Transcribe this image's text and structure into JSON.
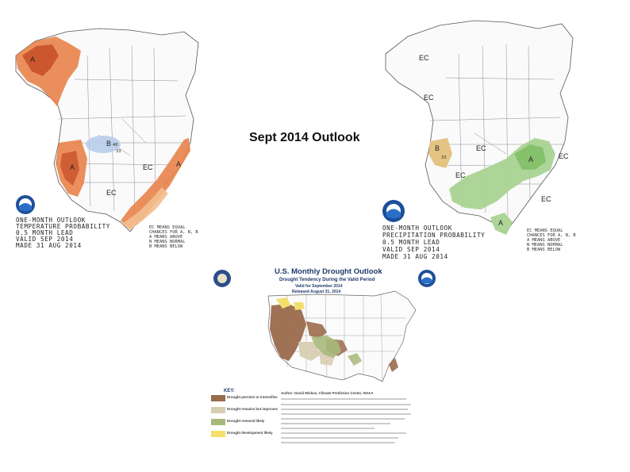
{
  "slide": {
    "title": "Sept 2014 Outlook"
  },
  "temperature_map": {
    "footer_lines": [
      "ONE-MONTH OUTLOOK",
      "TEMPERATURE PROBABILITY",
      "0.5 MONTH LEAD",
      "VALID SEP 2014",
      "MADE 31 AUG 2014"
    ],
    "legend_lines": [
      "EC MEANS EQUAL",
      "CHANCES FOR A, N, B",
      "A MEANS ABOVE",
      "N MEANS NORMAL",
      "B MEANS BELOW"
    ],
    "region_labels": {
      "a1": "A",
      "b1": "B",
      "b1_pct": "40",
      "b1_pct2": "33",
      "ec1": "EC",
      "ec2": "EC",
      "a2": "A",
      "a3": "A"
    },
    "colors": {
      "above": "#e8834a",
      "above_light": "#f3bf8f",
      "above_dark": "#c9512a",
      "below": "#b8cdea"
    }
  },
  "precip_map": {
    "footer_lines": [
      "ONE-MONTH OUTLOOK",
      "PRECIPITATION PROBABILITY",
      "0.5 MONTH LEAD",
      "VALID SEP 2014",
      "MADE 31 AUG 2014"
    ],
    "legend_lines": [
      "EC MEANS EQUAL",
      "CHANCES FOR A, N, B",
      "A MEANS ABOVE",
      "N MEANS NORMAL",
      "B MEANS BELOW"
    ],
    "region_labels": {
      "ec1": "EC",
      "ec2": "EC",
      "ec3": "EC",
      "ec4": "EC",
      "ec5": "EC",
      "ec6": "EC",
      "a1": "A",
      "a2": "A",
      "b1": "B",
      "b1_pct": "33"
    },
    "colors": {
      "above": "#a9d392",
      "above_dark": "#7cbb62",
      "below": "#e3c07c"
    }
  },
  "drought_map": {
    "title": "U.S. Monthly Drought Outlook",
    "subtitle": "Drought Tendency During the Valid Period",
    "valid_line": "Valid for September 2014",
    "released_line": "Released August 31, 2014",
    "key_label": "KEY:",
    "key_items": [
      "Drought persists or intensifies",
      "Drought remains but improves",
      "Drought removal likely",
      "Drought development likely"
    ],
    "author": "Author: David Miskus, Climate Prediction Center, NOAA",
    "colors": {
      "persists": "#9a6a4c",
      "improves": "#d8ccb3",
      "removal": "#a7b87a",
      "development": "#f4df6c"
    }
  }
}
